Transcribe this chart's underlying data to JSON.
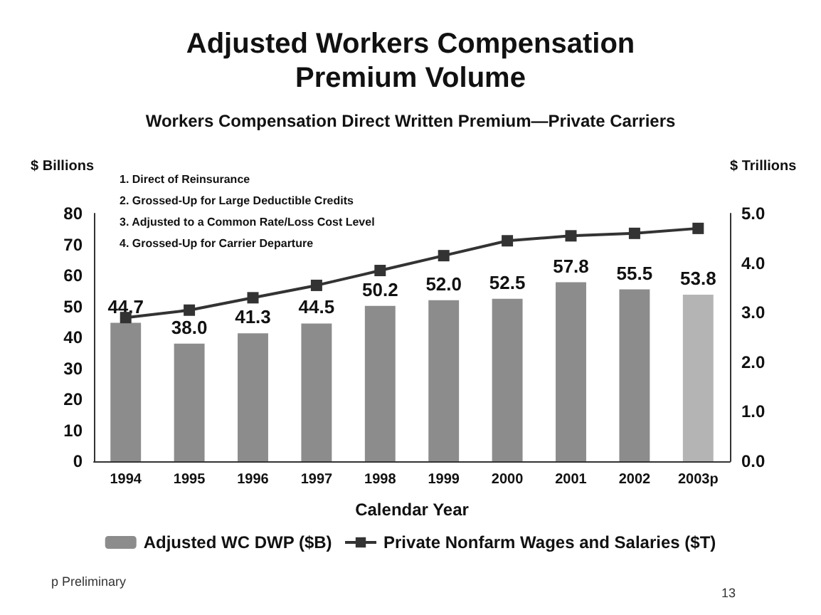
{
  "chart_data": {
    "type": "bar",
    "title": "Adjusted Workers Compensation\nPremium Volume",
    "subtitle": "Workers Compensation Direct Written Premium—Private Carriers",
    "xlabel": "Calendar Year",
    "ylabel": "$ Billions",
    "y2label": "$ Trillions",
    "categories": [
      "1994",
      "1995",
      "1996",
      "1997",
      "1998",
      "1999",
      "2000",
      "2001",
      "2002",
      "2003p"
    ],
    "series": [
      {
        "name": "Adjusted WC DWP ($B)",
        "color": "#8c8c8c",
        "colors": [
          "#8c8c8c",
          "#8c8c8c",
          "#8c8c8c",
          "#8c8c8c",
          "#8c8c8c",
          "#8c8c8c",
          "#8c8c8c",
          "#8c8c8c",
          "#8c8c8c",
          "#b4b4b4"
        ],
        "values": [
          44.7,
          38.0,
          41.3,
          44.5,
          50.2,
          52.0,
          52.5,
          57.8,
          55.5,
          53.8
        ],
        "value_labels": [
          "44.7",
          "38.0",
          "41.3",
          "44.5",
          "50.2",
          "52.0",
          "52.5",
          "57.8",
          "55.5",
          "53.8"
        ]
      },
      {
        "name": "Private Nonfarm Wages and Salaries ($T)",
        "type": "line",
        "axis": "y2",
        "color": "#333333",
        "marker": "square",
        "values": [
          2.9,
          3.05,
          3.3,
          3.55,
          3.85,
          4.15,
          4.45,
          4.55,
          4.6,
          4.7
        ]
      }
    ],
    "ylim": [
      0,
      80
    ],
    "yticks": [
      0,
      10,
      20,
      30,
      40,
      50,
      60,
      70,
      80
    ],
    "y2lim": [
      0,
      5
    ],
    "y2ticks": [
      {
        "value": 0,
        "label": "0.0"
      },
      {
        "value": 1,
        "label": "1.0"
      },
      {
        "value": 2,
        "label": "2.0"
      },
      {
        "value": 3,
        "label": "3.0"
      },
      {
        "value": 4,
        "label": "4.0"
      },
      {
        "value": 5,
        "label": "5.0"
      }
    ],
    "grid": false,
    "legend": "bottom",
    "annotations": [
      "1. Direct of Reinsurance",
      "2. Grossed-Up for Large Deductible Credits",
      "3. Adjusted to a Common Rate/Loss Cost Level",
      "4. Grossed-Up for Carrier Departure",
      "p Preliminary",
      "13"
    ]
  }
}
